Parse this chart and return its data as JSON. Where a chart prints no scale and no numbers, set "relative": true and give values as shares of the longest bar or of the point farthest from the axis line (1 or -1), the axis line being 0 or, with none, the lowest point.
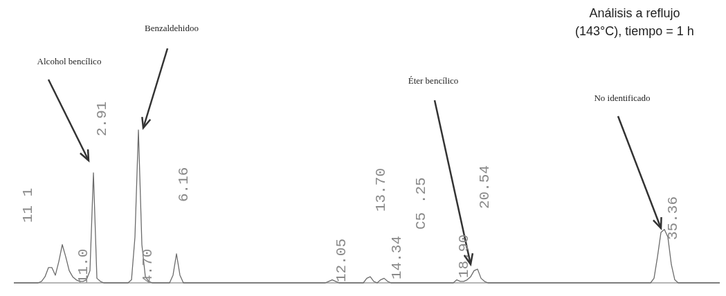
{
  "chart_data": {
    "type": "line",
    "relative": true,
    "title": "Análisis a reflujo (143°C), tiempo = 1 h",
    "color": "#6b6b6b",
    "annotations": [
      "Alcohol bencílico",
      "Benzaldehidoo",
      "Éter bencílico",
      "No identificado",
      "11 1",
      "11.0",
      "2.91",
      "4.70",
      "6.16",
      "12.05",
      "13.70",
      "14.34",
      "C5 .25",
      "18.90",
      "20.54",
      "35.36"
    ],
    "categories": [
      null,
      null,
      null,
      null,
      null,
      null,
      null,
      null,
      null,
      null,
      null,
      null,
      null,
      null,
      null,
      null,
      null,
      null,
      null,
      null,
      null,
      null,
      null,
      null,
      null,
      null,
      null,
      null,
      null,
      null,
      null,
      null,
      null,
      null,
      null,
      null,
      null,
      null,
      null,
      null,
      null,
      null,
      null,
      null,
      null,
      null,
      null,
      null,
      null,
      null,
      null,
      null,
      null,
      null,
      null,
      null,
      null,
      null,
      null,
      null,
      null,
      null,
      null,
      null,
      null,
      null,
      null,
      null,
      null,
      null,
      null,
      null,
      null,
      null,
      null,
      null,
      null,
      null,
      null,
      null,
      null,
      null,
      null,
      null,
      null,
      null,
      null,
      null,
      null,
      null,
      null,
      null,
      null,
      null,
      null,
      null,
      null,
      null,
      null,
      null,
      null,
      null,
      null,
      null,
      null,
      null,
      null,
      null,
      null,
      null,
      null,
      null,
      null,
      null,
      null,
      null,
      null,
      null,
      null,
      null,
      null,
      null,
      null,
      null,
      null,
      null,
      null,
      null,
      null,
      null,
      null,
      null,
      null,
      null,
      null,
      null,
      null,
      null,
      null,
      null,
      null,
      null,
      null,
      null,
      null,
      null,
      null,
      null,
      null,
      null,
      null,
      null,
      null,
      null,
      null,
      null,
      null,
      null,
      null,
      null,
      null,
      null,
      null,
      null,
      null,
      null,
      null,
      null,
      null,
      null,
      null,
      null,
      null,
      null,
      null,
      null,
      null,
      null,
      null,
      null,
      null,
      null,
      null,
      null,
      null,
      null,
      null,
      null,
      null,
      null,
      null,
      null,
      null,
      null,
      null,
      null,
      null,
      null,
      null,
      null,
      null,
      null,
      null,
      null,
      null
    ],
    "values": [
      0,
      0,
      0,
      0,
      0,
      0,
      0,
      0,
      0.01,
      0.04,
      0.1,
      0.1,
      0.05,
      0.14,
      0.25,
      0.17,
      0.08,
      0.04,
      0.02,
      0.01,
      0.01,
      0.02,
      0.08,
      0.72,
      0.03,
      0.01,
      0,
      0,
      0,
      0,
      0,
      0,
      0,
      0,
      0.02,
      0.3,
      1,
      0.25,
      0.04,
      0.01,
      0,
      0,
      0,
      0,
      0,
      0,
      0.05,
      0.19,
      0.05,
      0,
      0,
      0,
      0,
      0,
      0,
      0,
      0,
      0,
      0,
      0,
      0,
      0,
      0,
      0,
      0,
      0,
      0,
      0,
      0,
      0,
      0,
      0,
      0,
      0,
      0,
      0,
      0,
      0,
      0,
      0,
      0,
      0,
      0,
      0,
      0,
      0,
      0,
      0,
      0,
      0,
      0,
      0.01,
      0.02,
      0.01,
      0,
      0,
      0,
      0,
      0,
      0,
      0,
      0,
      0.03,
      0.04,
      0.01,
      0,
      0.02,
      0.03,
      0.01,
      0,
      0,
      0,
      0,
      0,
      0,
      0,
      0,
      0,
      0,
      0,
      0,
      0,
      0,
      0,
      0,
      0,
      0,
      0,
      0.02,
      0.01,
      0.01,
      0.02,
      0.04,
      0.08,
      0.09,
      0.03,
      0.01,
      0,
      0,
      0,
      0,
      0,
      0,
      0,
      0,
      0,
      0,
      0,
      0,
      0,
      0,
      0,
      0,
      0,
      0,
      0,
      0,
      0,
      0,
      0,
      0,
      0,
      0,
      0,
      0,
      0,
      0,
      0,
      0,
      0,
      0,
      0,
      0,
      0,
      0,
      0,
      0,
      0,
      0,
      0,
      0,
      0,
      0,
      0,
      0,
      0.03,
      0.17,
      0.33,
      0.35,
      0.3,
      0.12,
      0.02,
      0,
      0,
      0,
      0,
      0,
      0,
      0,
      0,
      0,
      0,
      0,
      0,
      0
    ]
  }
}
